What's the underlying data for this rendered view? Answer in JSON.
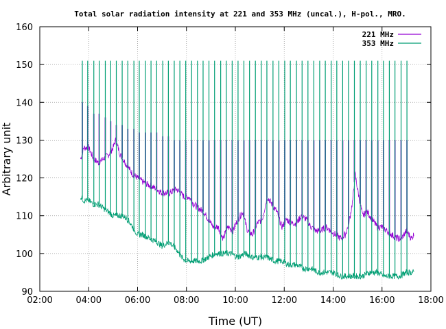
{
  "chart_data": {
    "type": "line",
    "title": "Total solar radiation intensity at 221 and 353 MHz (uncal.), H-pol., MRO.",
    "xlabel": "Time (UT)",
    "ylabel": "Arbitrary unit",
    "xlim": [
      2,
      18
    ],
    "ylim": [
      90,
      160
    ],
    "x_ticks": [
      2,
      4,
      6,
      8,
      10,
      12,
      14,
      16,
      18
    ],
    "x_tick_labels": [
      "02:00",
      "04:00",
      "06:00",
      "08:00",
      "10:00",
      "12:00",
      "14:00",
      "16:00",
      "18:00"
    ],
    "y_ticks": [
      90,
      100,
      110,
      120,
      130,
      140,
      150,
      160
    ],
    "y_tick_labels": [
      "90",
      "100",
      "110",
      "120",
      "130",
      "140",
      "150",
      "160"
    ],
    "grid": true,
    "legend_position": "top-right",
    "series": [
      {
        "name": "221 MHz",
        "color": "#9400d3",
        "x": [
          3.67,
          3.8,
          4.0,
          4.2,
          4.4,
          4.6,
          4.8,
          5.0,
          5.1,
          5.3,
          5.5,
          5.8,
          6.0,
          6.2,
          6.5,
          6.8,
          7.0,
          7.3,
          7.6,
          7.9,
          8.1,
          8.3,
          8.5,
          8.7,
          8.9,
          9.1,
          9.3,
          9.5,
          9.7,
          9.9,
          10.1,
          10.3,
          10.5,
          10.7,
          10.9,
          11.1,
          11.3,
          11.5,
          11.7,
          11.9,
          12.1,
          12.3,
          12.5,
          12.7,
          12.9,
          13.1,
          13.3,
          13.5,
          13.7,
          13.9,
          14.1,
          14.3,
          14.5,
          14.6,
          14.7,
          14.8,
          14.9,
          15.0,
          15.2,
          15.4,
          15.6,
          15.8,
          16.0,
          16.2,
          16.4,
          16.6,
          16.8,
          17.0,
          17.2,
          17.3
        ],
        "values": [
          125,
          128,
          128,
          125,
          124,
          125,
          126,
          128,
          130,
          126,
          124,
          121,
          120,
          119,
          118,
          117,
          116,
          116,
          117,
          115,
          115,
          113,
          112,
          111,
          109,
          107,
          107,
          104,
          107,
          106,
          109,
          111,
          106,
          105,
          108,
          109,
          115,
          113,
          111,
          107,
          109,
          108,
          108,
          110,
          109,
          107,
          106,
          106,
          107,
          106,
          105,
          104,
          105,
          107,
          110,
          114,
          121,
          117,
          110,
          111,
          109,
          107,
          107,
          106,
          105,
          104,
          104,
          106,
          104,
          105
        ]
      },
      {
        "name": "353 MHz",
        "color": "#009e73",
        "x": [
          3.67,
          3.8,
          4.0,
          4.2,
          4.4,
          4.6,
          4.8,
          5.0,
          5.2,
          5.4,
          5.6,
          5.8,
          6.0,
          6.2,
          6.5,
          6.8,
          7.0,
          7.3,
          7.6,
          7.8,
          8.0,
          8.3,
          8.6,
          8.9,
          9.2,
          9.5,
          9.8,
          10.1,
          10.4,
          10.7,
          11.0,
          11.3,
          11.6,
          11.9,
          12.2,
          12.5,
          12.8,
          13.1,
          13.4,
          13.7,
          14.0,
          14.3,
          14.6,
          14.9,
          15.2,
          15.5,
          15.8,
          16.1,
          16.4,
          16.7,
          17.0,
          17.3
        ],
        "values": [
          115,
          114,
          114,
          113,
          113,
          112,
          111,
          110,
          110,
          110,
          109,
          107,
          105,
          105,
          104,
          103,
          102,
          103,
          101,
          99,
          98,
          98,
          98,
          99,
          100,
          100,
          100,
          99,
          100,
          99,
          99,
          99,
          98,
          98,
          97,
          97,
          96,
          96,
          95,
          95,
          95,
          94,
          94,
          94,
          94,
          95,
          95,
          94,
          94,
          94,
          95,
          95
        ]
      }
    ],
    "calibration_spikes": {
      "x": [
        3.74,
        3.96,
        4.21,
        4.43,
        4.68,
        4.9,
        5.13,
        5.37,
        5.6,
        5.85,
        6.07,
        6.32,
        6.55,
        6.78,
        7.03,
        7.26,
        7.5,
        7.73,
        7.97,
        8.21,
        8.45,
        8.68,
        8.92,
        9.15,
        9.4,
        9.63,
        9.87,
        10.11,
        10.35,
        10.58,
        10.82,
        11.06,
        11.29,
        11.54,
        11.78,
        12.02,
        12.25,
        12.5,
        12.73,
        12.97,
        13.21,
        13.45,
        13.68,
        13.92,
        14.15,
        14.39,
        14.63,
        14.87,
        15.11,
        15.35,
        15.58,
        15.83,
        16.06,
        16.3,
        16.53,
        16.78,
        17.02
      ],
      "top_353": 151,
      "top_221_early": [
        140,
        139,
        137,
        137,
        136,
        135,
        134,
        134,
        133,
        133,
        132,
        132,
        132,
        132,
        131,
        131
      ],
      "top_221_late": 130
    }
  }
}
